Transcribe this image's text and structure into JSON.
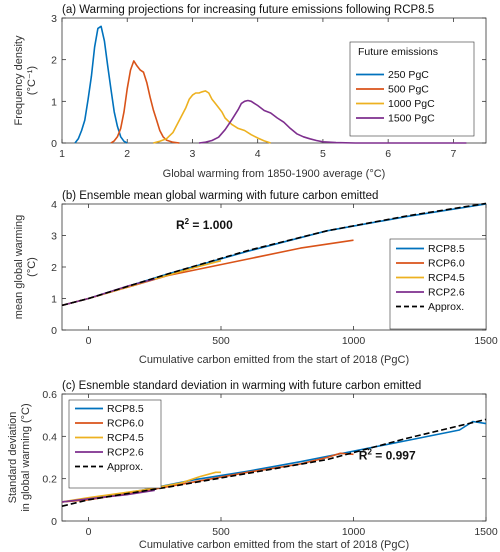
{
  "chart_data": [
    {
      "type": "line",
      "title": "(a) Warming projections for increasing future emissions following RCP8.5",
      "xlabel": "Global warming from 1850-1900 average (°C)",
      "ylabel": [
        "Frequency density",
        "(°C⁻¹)"
      ],
      "xlim": [
        1,
        7.5
      ],
      "ylim": [
        0,
        3
      ],
      "xticks": [
        1,
        2,
        3,
        4,
        5,
        6,
        7
      ],
      "yticks": [
        0,
        1,
        2,
        3
      ],
      "grid": false,
      "legend": {
        "title": "Future emissions",
        "placement": "top-right"
      },
      "series": [
        {
          "name": "250 PgC",
          "color": "#0072bd",
          "x": [
            1.2,
            1.25,
            1.3,
            1.35,
            1.4,
            1.45,
            1.5,
            1.55,
            1.6,
            1.65,
            1.7,
            1.75,
            1.8,
            1.85,
            1.9,
            1.95,
            2.0
          ],
          "y": [
            0,
            0.1,
            0.3,
            0.55,
            1.05,
            1.6,
            2.3,
            2.75,
            2.8,
            2.45,
            1.85,
            1.3,
            0.75,
            0.4,
            0.15,
            0.04,
            0
          ]
        },
        {
          "name": "500 PgC",
          "color": "#d95319",
          "x": [
            1.75,
            1.8,
            1.85,
            1.9,
            1.95,
            2.0,
            2.05,
            2.1,
            2.15,
            2.2,
            2.25,
            2.3,
            2.35,
            2.4,
            2.45,
            2.5,
            2.55,
            2.6,
            2.7,
            2.8
          ],
          "y": [
            0,
            0.05,
            0.15,
            0.35,
            0.75,
            1.3,
            1.75,
            1.97,
            1.85,
            1.75,
            1.7,
            1.45,
            1.1,
            0.8,
            0.55,
            0.3,
            0.15,
            0.07,
            0.02,
            0
          ]
        },
        {
          "name": "1000 PgC",
          "color": "#edb120",
          "x": [
            2.4,
            2.5,
            2.6,
            2.7,
            2.8,
            2.9,
            2.95,
            3.0,
            3.05,
            3.1,
            3.15,
            3.2,
            3.25,
            3.3,
            3.35,
            3.4,
            3.45,
            3.5,
            3.6,
            3.7,
            3.8,
            3.9,
            4.0,
            4.1,
            4.2
          ],
          "y": [
            0,
            0.04,
            0.1,
            0.25,
            0.55,
            0.85,
            1.05,
            1.15,
            1.2,
            1.2,
            1.23,
            1.25,
            1.2,
            1.05,
            0.95,
            0.85,
            0.75,
            0.6,
            0.45,
            0.35,
            0.3,
            0.2,
            0.12,
            0.05,
            0
          ]
        },
        {
          "name": "1500 PgC",
          "color": "#7e2f8e",
          "x": [
            3.1,
            3.2,
            3.3,
            3.4,
            3.5,
            3.6,
            3.7,
            3.75,
            3.8,
            3.85,
            3.9,
            3.95,
            4.0,
            4.1,
            4.2,
            4.3,
            4.4,
            4.5,
            4.6,
            4.7,
            4.8,
            4.9,
            5.0,
            5.2,
            5.5,
            6.0,
            6.5,
            7.0,
            7.2
          ],
          "y": [
            0,
            0.02,
            0.06,
            0.14,
            0.32,
            0.55,
            0.8,
            0.95,
            1.0,
            1.02,
            1.0,
            0.95,
            0.9,
            0.78,
            0.72,
            0.6,
            0.5,
            0.35,
            0.22,
            0.15,
            0.1,
            0.06,
            0.03,
            0.01,
            0,
            0,
            0,
            0,
            0
          ]
        }
      ]
    },
    {
      "type": "line",
      "title": "(b) Ensemble mean global warming with future carbon emitted",
      "xlabel": "Cumulative carbon emitted from the start of 2018 (PgC)",
      "ylabel": [
        "mean global warming",
        "(°C)"
      ],
      "xlim": [
        -100,
        1500
      ],
      "ylim": [
        0,
        4
      ],
      "xticks": [
        0,
        500,
        1000,
        1500
      ],
      "yticks": [
        0,
        1,
        2,
        3,
        4
      ],
      "grid": false,
      "legend": {
        "placement": "right"
      },
      "annotation": {
        "label": "R",
        "sup": "2",
        "value": " = 1.000",
        "x": 330,
        "y": 3.2
      },
      "series": [
        {
          "name": "RCP8.5",
          "color": "#0072bd",
          "x": [
            -100,
            0,
            300,
            600,
            900,
            1200,
            1500
          ],
          "y": [
            0.78,
            1.0,
            1.78,
            2.5,
            3.15,
            3.6,
            4.0
          ]
        },
        {
          "name": "RCP6.0",
          "color": "#d95319",
          "x": [
            -100,
            0,
            300,
            600,
            800,
            1000
          ],
          "y": [
            0.78,
            1.0,
            1.73,
            2.25,
            2.6,
            2.85
          ]
        },
        {
          "name": "RCP4.5",
          "color": "#edb120",
          "x": [
            -100,
            0,
            200,
            400,
            500
          ],
          "y": [
            0.78,
            1.0,
            1.5,
            1.98,
            2.2
          ]
        },
        {
          "name": "RCP2.6",
          "color": "#7e2f8e",
          "x": [
            -100,
            0,
            150,
            250
          ],
          "y": [
            0.78,
            1.0,
            1.4,
            1.62
          ]
        },
        {
          "name": "Approx.",
          "color": "#000000",
          "dashed": true,
          "x": [
            -100,
            0,
            300,
            600,
            900,
            1200,
            1500
          ],
          "y": [
            0.78,
            1.0,
            1.78,
            2.52,
            3.15,
            3.62,
            4.02
          ]
        }
      ]
    },
    {
      "type": "line",
      "title": "(c) Esnemble standard deviation in warming with future carbon emitted",
      "xlabel": "Cumulative carbon emitted from the start of 2018 (PgC)",
      "ylabel": [
        "Standard deviation",
        "in global warming (°C)"
      ],
      "xlim": [
        -100,
        1500
      ],
      "ylim": [
        0,
        0.6
      ],
      "xticks": [
        0,
        500,
        1000,
        1500
      ],
      "yticks": [
        0,
        0.2,
        0.4,
        0.6
      ],
      "grid": false,
      "legend": {
        "placement": "top-left"
      },
      "annotation": {
        "label": "R",
        "sup": "2",
        "value": " = 0.997",
        "x": 1020,
        "y": 0.29
      },
      "series": [
        {
          "name": "RCP8.5",
          "color": "#0072bd",
          "x": [
            -100,
            0,
            200,
            400,
            600,
            800,
            1000,
            1200,
            1400,
            1450,
            1500
          ],
          "y": [
            0.09,
            0.105,
            0.145,
            0.195,
            0.235,
            0.28,
            0.33,
            0.38,
            0.43,
            0.47,
            0.46
          ]
        },
        {
          "name": "RCP6.0",
          "color": "#d95319",
          "x": [
            -100,
            0,
            200,
            400,
            600,
            800,
            900,
            950,
            1000
          ],
          "y": [
            0.09,
            0.1,
            0.14,
            0.185,
            0.23,
            0.27,
            0.3,
            0.32,
            0.315
          ]
        },
        {
          "name": "RCP4.5",
          "color": "#edb120",
          "x": [
            -100,
            0,
            200,
            350,
            420,
            480,
            500
          ],
          "y": [
            0.09,
            0.11,
            0.145,
            0.18,
            0.21,
            0.23,
            0.23
          ]
        },
        {
          "name": "RCP2.6",
          "color": "#7e2f8e",
          "x": [
            -100,
            0,
            150,
            250
          ],
          "y": [
            0.09,
            0.105,
            0.125,
            0.145
          ]
        },
        {
          "name": "Approx.",
          "color": "#000000",
          "dashed": true,
          "x": [
            -100,
            0,
            300,
            600,
            900,
            1200,
            1500
          ],
          "y": [
            0.07,
            0.1,
            0.16,
            0.225,
            0.29,
            0.39,
            0.48
          ]
        }
      ]
    }
  ]
}
